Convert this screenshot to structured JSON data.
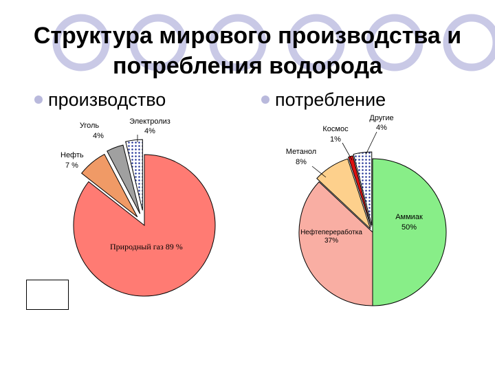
{
  "slide": {
    "title_line1": "Структура мирового производства и",
    "title_line2": "потребления водорода",
    "bullet_production": "производство",
    "bullet_consumption": "потребление"
  },
  "colors": {
    "decor_circles": "#c9c9e6",
    "bullet": "#b9b9dc"
  },
  "chart_data": [
    {
      "type": "pie",
      "title": "производство",
      "slices": [
        {
          "label": "Природный газ",
          "value": 89,
          "value_label": "89 %",
          "color": "#ff7b73"
        },
        {
          "label": "Нефть",
          "value": 7,
          "value_label": "7 %",
          "color": "#f09a66"
        },
        {
          "label": "Уголь",
          "value": 4,
          "value_label": "4%",
          "color": "#a0a0a0"
        },
        {
          "label": "Электролиз",
          "value": 4,
          "value_label": "4%",
          "color": "#c8d4f0"
        }
      ]
    },
    {
      "type": "pie",
      "title": "потребление",
      "slices": [
        {
          "label": "Аммиак",
          "value": 50,
          "value_label": "50%",
          "color": "#88ee88"
        },
        {
          "label": "Нефтепереработка",
          "value": 37,
          "value_label": "37%",
          "color": "#f9aea3"
        },
        {
          "label": "Метанол",
          "value": 8,
          "value_label": "8%",
          "color": "#fdd08c"
        },
        {
          "label": "Космос",
          "value": 1,
          "value_label": "1%",
          "color": "#dd1111"
        },
        {
          "label": "Другие",
          "value": 4,
          "value_label": "4%",
          "color": "#c8d4f0"
        }
      ]
    }
  ]
}
